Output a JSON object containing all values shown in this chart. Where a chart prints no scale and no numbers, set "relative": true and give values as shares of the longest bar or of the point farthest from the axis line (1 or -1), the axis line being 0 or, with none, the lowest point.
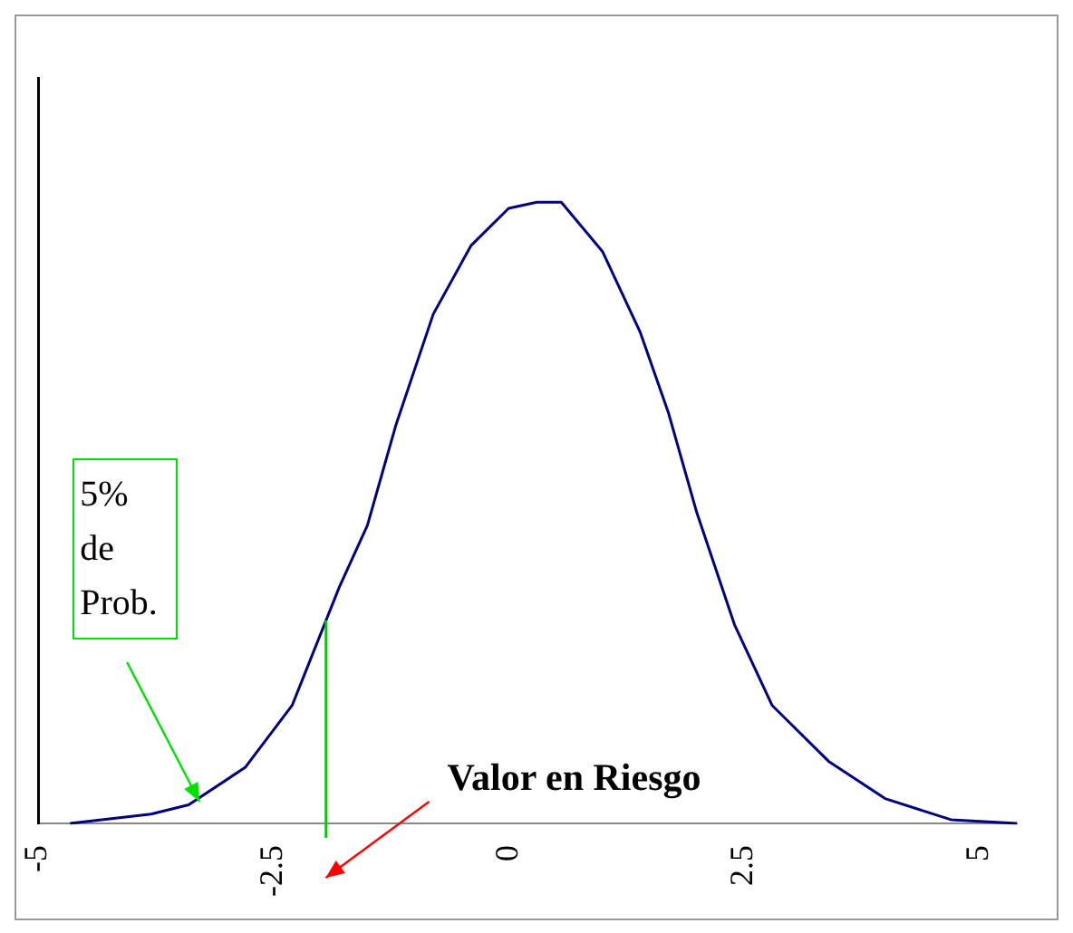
{
  "chart_data": {
    "type": "line",
    "relative": true,
    "x": [
      -4.66,
      -3.8,
      -3.4,
      -2.8,
      -2.3,
      -1.8,
      -1.5,
      -1.2,
      -0.8,
      -0.4,
      0,
      0.3,
      0.56,
      1.0,
      1.4,
      1.7,
      2.0,
      2.4,
      2.8,
      3.4,
      4.0,
      4.7,
      5.4
    ],
    "series": [
      {
        "color": "#000080",
        "values": [
          0,
          0.015,
          0.03,
          0.09,
          0.19,
          0.38,
          0.48,
          0.64,
          0.82,
          0.93,
          0.99,
          1.0,
          1.0,
          0.92,
          0.79,
          0.66,
          0.5,
          0.32,
          0.19,
          0.1,
          0.04,
          0.006,
          0
        ]
      }
    ],
    "xlim": [
      -5,
      5.4
    ],
    "xticks": [
      -5,
      -2.5,
      0,
      2.5,
      5
    ],
    "grid": false,
    "legend": false,
    "marker": "none",
    "line_style": "solid",
    "ref_lines": [
      {
        "axis": "x",
        "value": -1.94,
        "color": "#00cc00"
      }
    ],
    "annotations": [
      "5% de Prob.",
      "Valor en Riesgo"
    ]
  }
}
